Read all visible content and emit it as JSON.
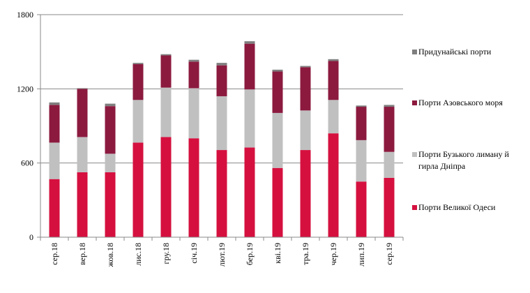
{
  "chart_data": {
    "type": "bar",
    "stacked": true,
    "categories": [
      "сер.18",
      "вер.18",
      "жов.18",
      "лис.18",
      "гру.18",
      "січ.19",
      "лют.19",
      "бер.19",
      "кві.19",
      "тра.19",
      "чер.19",
      "лип.19",
      "сер.19"
    ],
    "series": [
      {
        "name": "Порти Великої Одеси",
        "color": "#d5103f",
        "values": [
          470,
          525,
          525,
          765,
          810,
          800,
          705,
          725,
          560,
          705,
          840,
          450,
          480
        ]
      },
      {
        "name": "Порти Бузького лиману й гирла Дніпра",
        "color": "#c0c0c0",
        "values": [
          295,
          285,
          150,
          345,
          400,
          405,
          435,
          470,
          445,
          320,
          270,
          335,
          210
        ]
      },
      {
        "name": "Порти Азовського  моря",
        "color": "#8c1a3f",
        "values": [
          305,
          390,
          385,
          290,
          260,
          215,
          250,
          370,
          335,
          350,
          315,
          270,
          365
        ]
      },
      {
        "name": "Придунайські порти",
        "color": "#7f7f7f",
        "values": [
          20,
          5,
          20,
          10,
          10,
          15,
          20,
          20,
          15,
          10,
          15,
          10,
          15
        ]
      }
    ],
    "yticks": [
      0,
      600,
      1200,
      1800
    ],
    "ylim": [
      0,
      1800
    ],
    "grid": true,
    "legend_position": "right"
  }
}
